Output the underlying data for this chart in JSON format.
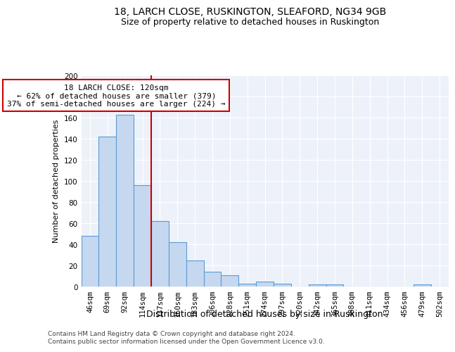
{
  "title1": "18, LARCH CLOSE, RUSKINGTON, SLEAFORD, NG34 9GB",
  "title2": "Size of property relative to detached houses in Ruskington",
  "xlabel": "Distribution of detached houses by size in Ruskington",
  "ylabel": "Number of detached properties",
  "categories": [
    "46sqm",
    "69sqm",
    "92sqm",
    "114sqm",
    "137sqm",
    "160sqm",
    "183sqm",
    "206sqm",
    "228sqm",
    "251sqm",
    "274sqm",
    "297sqm",
    "320sqm",
    "342sqm",
    "365sqm",
    "388sqm",
    "411sqm",
    "434sqm",
    "456sqm",
    "479sqm",
    "502sqm"
  ],
  "values": [
    48,
    142,
    163,
    96,
    62,
    42,
    25,
    14,
    11,
    3,
    5,
    3,
    0,
    2,
    2,
    0,
    0,
    0,
    0,
    2,
    0
  ],
  "bar_color": "#c5d8ef",
  "bar_edge_color": "#5b9bd5",
  "red_line_x": 3.5,
  "annotation_line1": "18 LARCH CLOSE: 120sqm",
  "annotation_line2": "← 62% of detached houses are smaller (379)",
  "annotation_line3": "37% of semi-detached houses are larger (224) →",
  "annotation_box_color": "#ffffff",
  "annotation_box_edge_color": "#cc0000",
  "red_line_color": "#cc0000",
  "footer1": "Contains HM Land Registry data © Crown copyright and database right 2024.",
  "footer2": "Contains public sector information licensed under the Open Government Licence v3.0.",
  "ylim": [
    0,
    200
  ],
  "yticks": [
    0,
    20,
    40,
    60,
    80,
    100,
    120,
    140,
    160,
    180,
    200
  ],
  "background_color": "#edf2fa",
  "grid_color": "#ffffff",
  "title1_fontsize": 10,
  "title2_fontsize": 9,
  "xlabel_fontsize": 9,
  "ylabel_fontsize": 8,
  "tick_fontsize": 7.5,
  "annotation_fontsize": 8,
  "footer_fontsize": 6.5
}
